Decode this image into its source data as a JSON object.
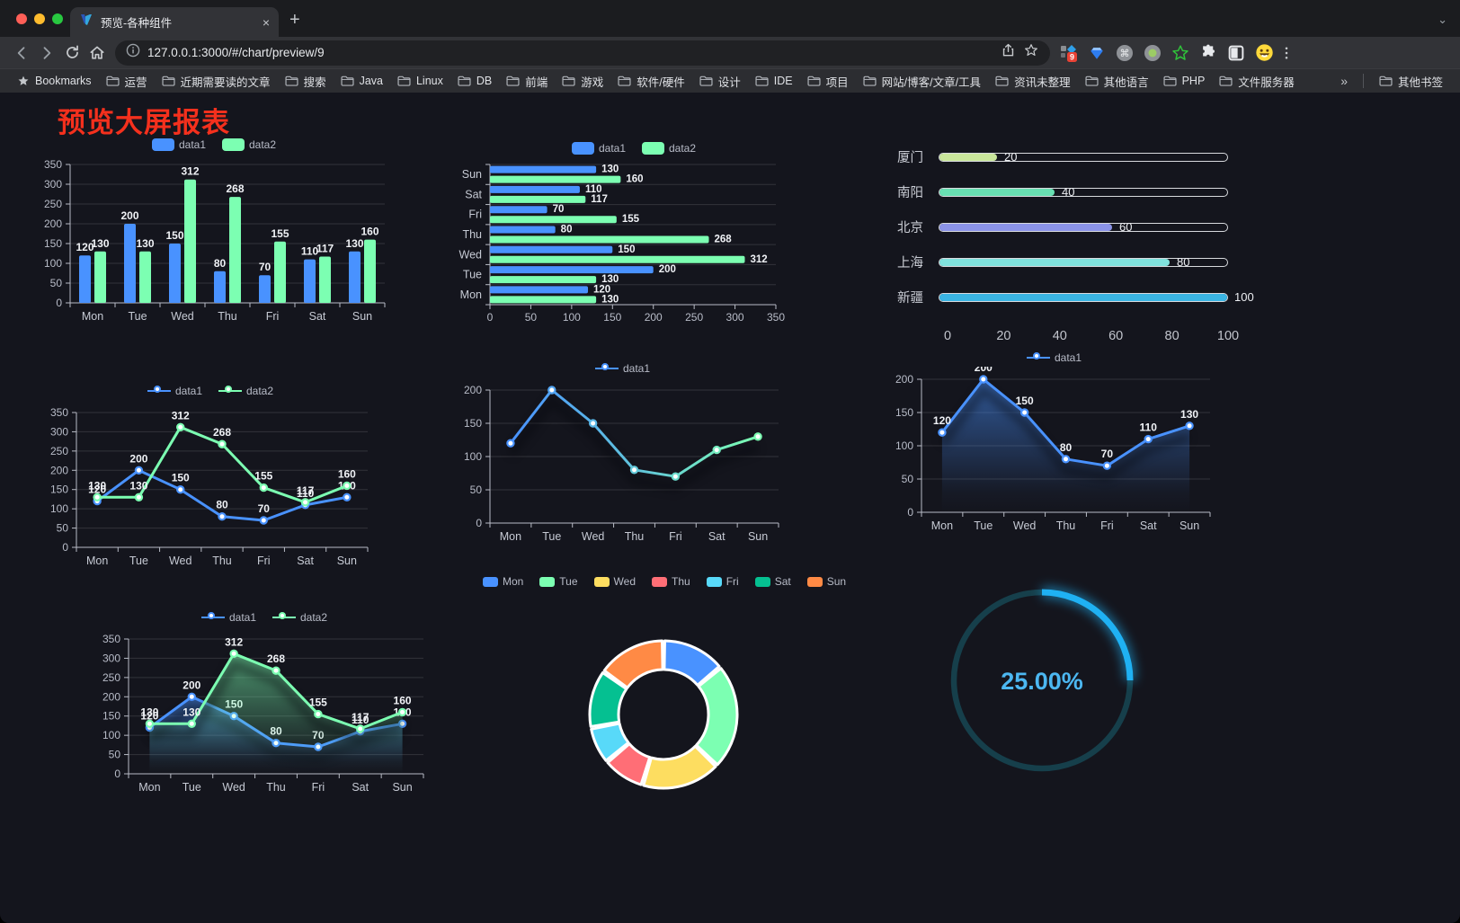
{
  "browser": {
    "window_controls": {
      "close": "#ff5f57",
      "minimize": "#febc2e",
      "zoom": "#28c840"
    },
    "tab": {
      "title": "预览-各种组件",
      "close_glyph": "×",
      "new_tab_glyph": "+",
      "search_chevron": "⌄"
    },
    "url": "127.0.0.1:3000/#/chart/preview/9",
    "extensions": [
      {
        "name": "grid-badge-extension-icon",
        "badge": "9"
      },
      {
        "name": "gem-extension-icon"
      },
      {
        "name": "command-extension-icon",
        "glyph": "⌘"
      },
      {
        "name": "green-dot-extension-icon"
      },
      {
        "name": "green-star-extension-icon"
      },
      {
        "name": "puzzle-extensions-icon"
      },
      {
        "name": "split-square-extension-icon"
      },
      {
        "name": "emoji-extension-icon"
      }
    ],
    "bookmarks_label": "Bookmarks",
    "bookmarks": [
      "运营",
      "近期需要读的文章",
      "搜索",
      "Java",
      "Linux",
      "DB",
      "前端",
      "游戏",
      "软件/硬件",
      "设计",
      "IDE",
      "项目",
      "网站/博客/文章/工具",
      "资讯未整理",
      "其他语言",
      "PHP",
      "文件服务器"
    ],
    "bookmarks_overflow": "»",
    "other_bookmarks": "其他书签"
  },
  "page": {
    "title": "预览大屏报表",
    "title_color": "#f4301d",
    "background": "#14151d"
  },
  "theme": {
    "series_blue": "#4992ff",
    "series_green": "#7cffb2",
    "axis_text": "#b8bcc8",
    "category_text": "#c6cad4",
    "value_label": "#f0f2f6",
    "grid_line": "rgba(255,255,255,0.13)",
    "axis_line": "#b9bcc6"
  },
  "chart_data": [
    {
      "id": "bar-vertical",
      "type": "bar",
      "categories": [
        "Mon",
        "Tue",
        "Wed",
        "Thu",
        "Fri",
        "Sat",
        "Sun"
      ],
      "series": [
        {
          "name": "data1",
          "color": "#4992ff",
          "values": [
            120,
            200,
            150,
            80,
            70,
            110,
            130
          ]
        },
        {
          "name": "data2",
          "color": "#7cffb2",
          "values": [
            130,
            130,
            312,
            268,
            155,
            117,
            160
          ]
        }
      ],
      "ylim": [
        0,
        350
      ],
      "ystep": 50,
      "legend_position": "top",
      "grid": true,
      "value_labels": true
    },
    {
      "id": "bar-horizontal",
      "type": "bar",
      "orientation": "horizontal",
      "categories": [
        "Mon",
        "Tue",
        "Wed",
        "Thu",
        "Fri",
        "Sat",
        "Sun"
      ],
      "series": [
        {
          "name": "data1",
          "color": "#4992ff",
          "values": [
            120,
            200,
            150,
            80,
            70,
            110,
            130
          ]
        },
        {
          "name": "data2",
          "color": "#7cffb2",
          "values": [
            130,
            130,
            312,
            268,
            155,
            117,
            160
          ]
        }
      ],
      "xlim": [
        0,
        350
      ],
      "xstep": 50,
      "legend_position": "top",
      "grid": true,
      "value_labels": true
    },
    {
      "id": "progress-bars",
      "type": "bar",
      "subtype": "progress",
      "items": [
        {
          "label": "厦门",
          "value": 20,
          "color": "#c9e69b"
        },
        {
          "label": "南阳",
          "value": 40,
          "color": "#68dfb2"
        },
        {
          "label": "北京",
          "value": 60,
          "color": "#8b93e8"
        },
        {
          "label": "上海",
          "value": 80,
          "color": "#80e2dd"
        },
        {
          "label": "新疆",
          "value": 100,
          "color": "#3ab4e2"
        }
      ],
      "xlim": [
        0,
        100
      ],
      "xticks": [
        0,
        20,
        40,
        60,
        80,
        100
      ]
    },
    {
      "id": "line-two-series",
      "type": "line",
      "categories": [
        "Mon",
        "Tue",
        "Wed",
        "Thu",
        "Fri",
        "Sat",
        "Sun"
      ],
      "series": [
        {
          "name": "data1",
          "color": "#4992ff",
          "values": [
            120,
            200,
            150,
            80,
            70,
            110,
            130
          ]
        },
        {
          "name": "data2",
          "color": "#7cffb2",
          "values": [
            130,
            130,
            312,
            268,
            155,
            117,
            160
          ]
        }
      ],
      "ylim": [
        0,
        350
      ],
      "ystep": 50,
      "legend_position": "top",
      "value_labels": true
    },
    {
      "id": "line-gradient",
      "type": "line",
      "categories": [
        "Mon",
        "Tue",
        "Wed",
        "Thu",
        "Fri",
        "Sat",
        "Sun"
      ],
      "series": [
        {
          "name": "data1",
          "gradient": [
            "#4992ff",
            "#7cffb2"
          ],
          "values": [
            120,
            200,
            150,
            80,
            70,
            110,
            130
          ]
        }
      ],
      "ylim": [
        0,
        200
      ],
      "ystep": 50,
      "legend_position": "top",
      "value_labels": false,
      "shadow": true
    },
    {
      "id": "area-single",
      "type": "area",
      "categories": [
        "Mon",
        "Tue",
        "Wed",
        "Thu",
        "Fri",
        "Sat",
        "Sun"
      ],
      "series": [
        {
          "name": "data1",
          "color": "#4992ff",
          "values": [
            120,
            200,
            150,
            80,
            70,
            110,
            130
          ],
          "area": true
        }
      ],
      "ylim": [
        0,
        200
      ],
      "ystep": 50,
      "legend_position": "top",
      "value_labels": true,
      "shadow": true
    },
    {
      "id": "area-two-series",
      "type": "area",
      "categories": [
        "Mon",
        "Tue",
        "Wed",
        "Thu",
        "Fri",
        "Sat",
        "Sun"
      ],
      "series": [
        {
          "name": "data1",
          "color": "#4992ff",
          "values": [
            120,
            200,
            150,
            80,
            70,
            110,
            130
          ],
          "area": true
        },
        {
          "name": "data2",
          "color": "#7cffb2",
          "values": [
            130,
            130,
            312,
            268,
            155,
            117,
            160
          ],
          "area": true
        }
      ],
      "ylim": [
        0,
        350
      ],
      "ystep": 50,
      "legend_position": "top",
      "value_labels": true,
      "shadow": true
    },
    {
      "id": "donut",
      "type": "pie",
      "labels": [
        "Mon",
        "Tue",
        "Wed",
        "Thu",
        "Fri",
        "Sat",
        "Sun"
      ],
      "values": [
        120,
        200,
        150,
        80,
        70,
        110,
        130
      ],
      "colors": [
        "#4992ff",
        "#7cffb2",
        "#fddd60",
        "#ff6e76",
        "#58d9f9",
        "#05c091",
        "#ff8a45"
      ],
      "inner_radius_ratio": 0.6,
      "border_color": "#ffffff",
      "legend_position": "top"
    },
    {
      "id": "gauge-progress",
      "type": "pie",
      "subtype": "ring-progress",
      "value": 25,
      "display": "25.00%",
      "arc_color": "#1fb1f3",
      "track_color": "#163f4b",
      "text_color": "#4cb7f1"
    }
  ]
}
